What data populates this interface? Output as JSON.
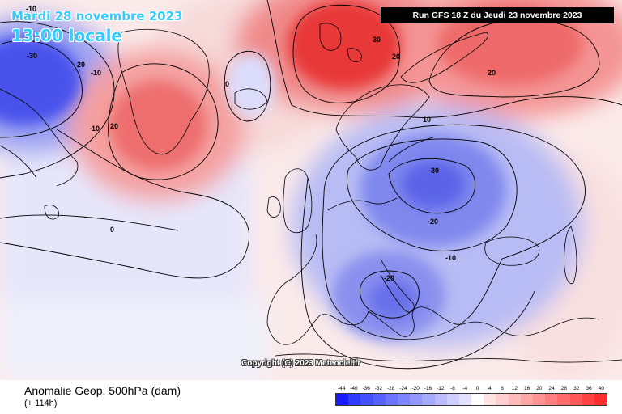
{
  "header": {
    "date": "Mardi 28 novembre 2023",
    "time": "13:00 locale",
    "run": "Run GFS 18 Z du Jeudi 23 novembre 2023"
  },
  "map": {
    "copyright": "Copyright (C) 2023 Meteociel.fr",
    "contour_labels": [
      {
        "name": "contour-label-minus10-nw",
        "text": "-10"
      },
      {
        "name": "contour-label-minus30-nw",
        "text": "-30"
      },
      {
        "name": "contour-label-minus20-nw",
        "text": "-20"
      },
      {
        "name": "contour-label-minus10-nw2",
        "text": "-10"
      },
      {
        "name": "contour-label-minus10-labrador",
        "text": "-10"
      },
      {
        "name": "contour-label-20-greenland",
        "text": "20"
      },
      {
        "name": "contour-label-0-iceland",
        "text": "0"
      },
      {
        "name": "contour-label-30-scandinavia",
        "text": "30"
      },
      {
        "name": "contour-label-20-scandinavia",
        "text": "20"
      },
      {
        "name": "contour-label-20-russia",
        "text": "20"
      },
      {
        "name": "contour-label-10-baltic",
        "text": "10"
      },
      {
        "name": "contour-label-0-atlantic",
        "text": "0"
      },
      {
        "name": "contour-label-minus30-central",
        "text": "-30"
      },
      {
        "name": "contour-label-minus20-central",
        "text": "-20"
      },
      {
        "name": "contour-label-minus10-balkans",
        "text": "-10"
      },
      {
        "name": "contour-label-minus20-south",
        "text": "-20"
      }
    ]
  },
  "footer": {
    "title": "Anomalie Geop. 500hPa (dam)",
    "lead": "(+ 114h)"
  },
  "colorbar": {
    "labels": [
      "-44",
      "-40",
      "-36",
      "-32",
      "-28",
      "-24",
      "-20",
      "-16",
      "-12",
      "-8",
      "-4",
      "0",
      "4",
      "8",
      "12",
      "16",
      "20",
      "24",
      "28",
      "32",
      "36",
      "40"
    ],
    "colors": [
      "#1a1aff",
      "#2e3cff",
      "#4250ff",
      "#5662ff",
      "#6a74ff",
      "#7e86ff",
      "#9298ff",
      "#a6aaff",
      "#babcff",
      "#cecfff",
      "#e2e2ff",
      "#ffffff",
      "#ffe2e2",
      "#ffcece",
      "#ffbaba",
      "#ffa6a6",
      "#ff9292",
      "#ff7e7e",
      "#ff6a6a",
      "#ff5656",
      "#ff4242",
      "#ff2e2e"
    ]
  },
  "palette": {
    "text_accent": "#33ccff",
    "contour": "#000000",
    "coast": "#000000"
  }
}
